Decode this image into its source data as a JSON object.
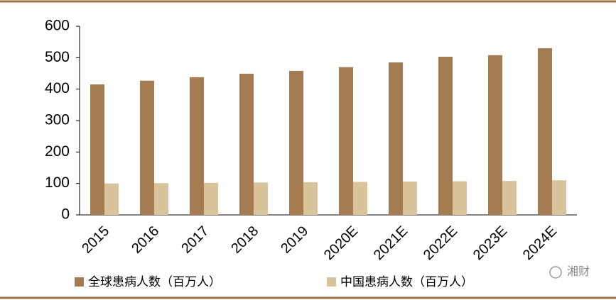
{
  "chart_data": {
    "type": "bar",
    "categories": [
      "2015",
      "2016",
      "2017",
      "2018",
      "2019",
      "2020E",
      "2021E",
      "2022E",
      "2023E",
      "2024E"
    ],
    "series": [
      {
        "name": "全球患病人数（百万人）",
        "color": "#a57c52",
        "values": [
          415,
          427,
          438,
          449,
          458,
          470,
          485,
          503,
          508,
          530
        ]
      },
      {
        "name": "中国患病人数（百万人）",
        "color": "#d8c39b",
        "values": [
          100,
          101,
          102,
          103,
          104,
          105,
          106,
          107,
          108,
          110
        ]
      }
    ],
    "ylim": [
      0,
      600
    ],
    "yticks": [
      0,
      100,
      200,
      300,
      400,
      500,
      600
    ],
    "watermark": "湘财"
  }
}
